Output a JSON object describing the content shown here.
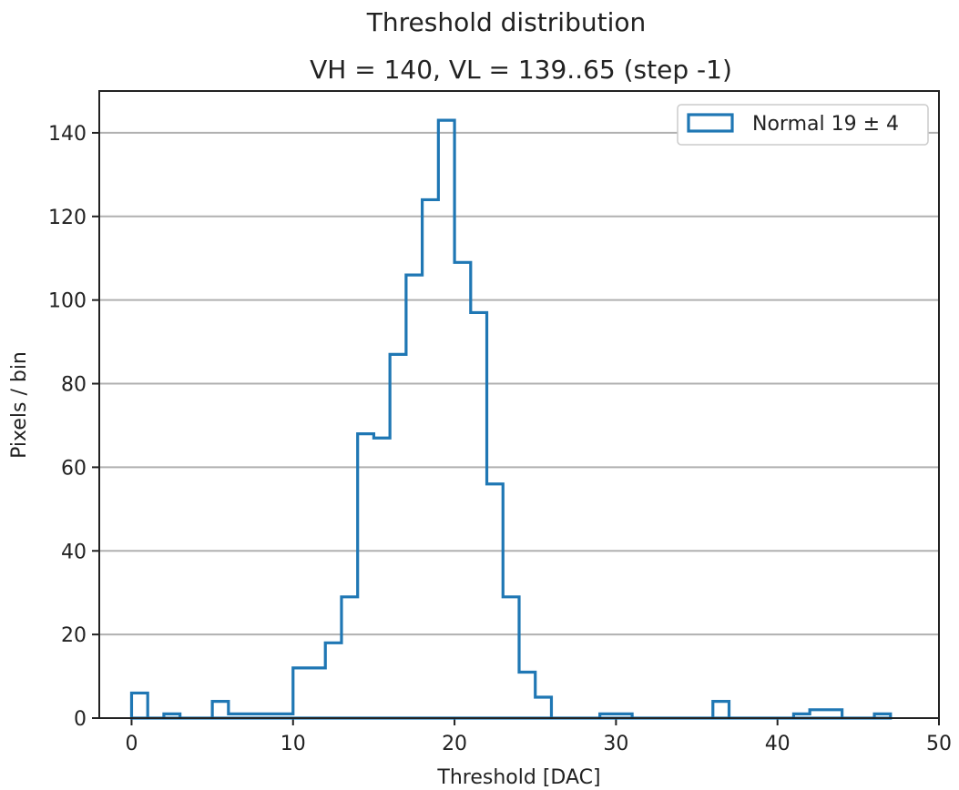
{
  "chart_data": {
    "type": "histogram",
    "title": "Threshold distribution",
    "subtitle": "VH = 140, VL = 139..65 (step -1)",
    "xlabel": "Threshold [DAC]",
    "ylabel": "Pixels / bin",
    "xlim": [
      -2,
      50
    ],
    "ylim": [
      0,
      150
    ],
    "xticks": [
      0,
      10,
      20,
      30,
      40,
      50
    ],
    "yticks": [
      0,
      20,
      40,
      60,
      80,
      100,
      120,
      140
    ],
    "grid": "horizontal",
    "legend_position": "top-right",
    "color": "#1f77b4",
    "series": [
      {
        "name": "Normal 19 ± 4",
        "bin_edges": [
          0,
          1,
          2,
          3,
          4,
          5,
          6,
          7,
          8,
          9,
          10,
          11,
          12,
          13,
          14,
          15,
          16,
          17,
          18,
          19,
          20,
          21,
          22,
          23,
          24,
          25,
          26,
          27,
          28,
          29,
          30,
          31,
          32,
          33,
          34,
          35,
          36,
          37,
          38,
          39,
          40,
          41,
          42,
          43,
          44,
          45,
          46,
          47
        ],
        "counts": [
          6,
          0,
          1,
          0,
          0,
          4,
          1,
          1,
          1,
          1,
          12,
          12,
          18,
          29,
          68,
          67,
          87,
          106,
          124,
          143,
          109,
          97,
          56,
          29,
          11,
          5,
          0,
          0,
          0,
          1,
          1,
          0,
          0,
          0,
          0,
          0,
          4,
          0,
          0,
          0,
          0,
          1,
          2,
          2,
          0,
          0,
          1
        ]
      }
    ]
  }
}
